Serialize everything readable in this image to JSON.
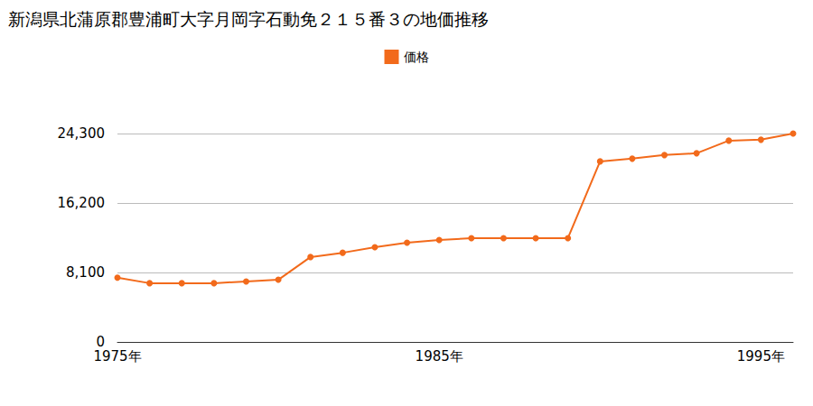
{
  "chart_data": {
    "type": "line",
    "title": "新潟県北蒲原郡豊浦町大字月岡字石動免２１５番３の地価推移",
    "series": [
      {
        "name": "価格",
        "color": "#f26a1b",
        "marker": "circle",
        "values": [
          7500,
          6850,
          6850,
          6850,
          7050,
          7250,
          9900,
          10400,
          11050,
          11570,
          11890,
          12100,
          12100,
          12100,
          12100,
          21050,
          21370,
          21790,
          22000,
          23470,
          23580,
          24300
        ]
      }
    ],
    "x": [
      1975,
      1976,
      1977,
      1978,
      1979,
      1980,
      1981,
      1982,
      1983,
      1984,
      1985,
      1986,
      1987,
      1988,
      1989,
      1990,
      1991,
      1992,
      1993,
      1994,
      1995,
      1996
    ],
    "xlim": [
      1975,
      1996
    ],
    "xticks": [
      {
        "value": 1975,
        "label": "1975年"
      },
      {
        "value": 1985,
        "label": "1985年"
      },
      {
        "value": 1995,
        "label": "1995年"
      }
    ],
    "ylim": [
      0,
      24300
    ],
    "yticks": [
      0,
      {
        "value": 8100,
        "label": "8,100"
      },
      {
        "value": 16200,
        "label": "16,200"
      },
      {
        "value": 24300,
        "label": "24,300"
      }
    ],
    "grid": true,
    "legend": "top"
  }
}
